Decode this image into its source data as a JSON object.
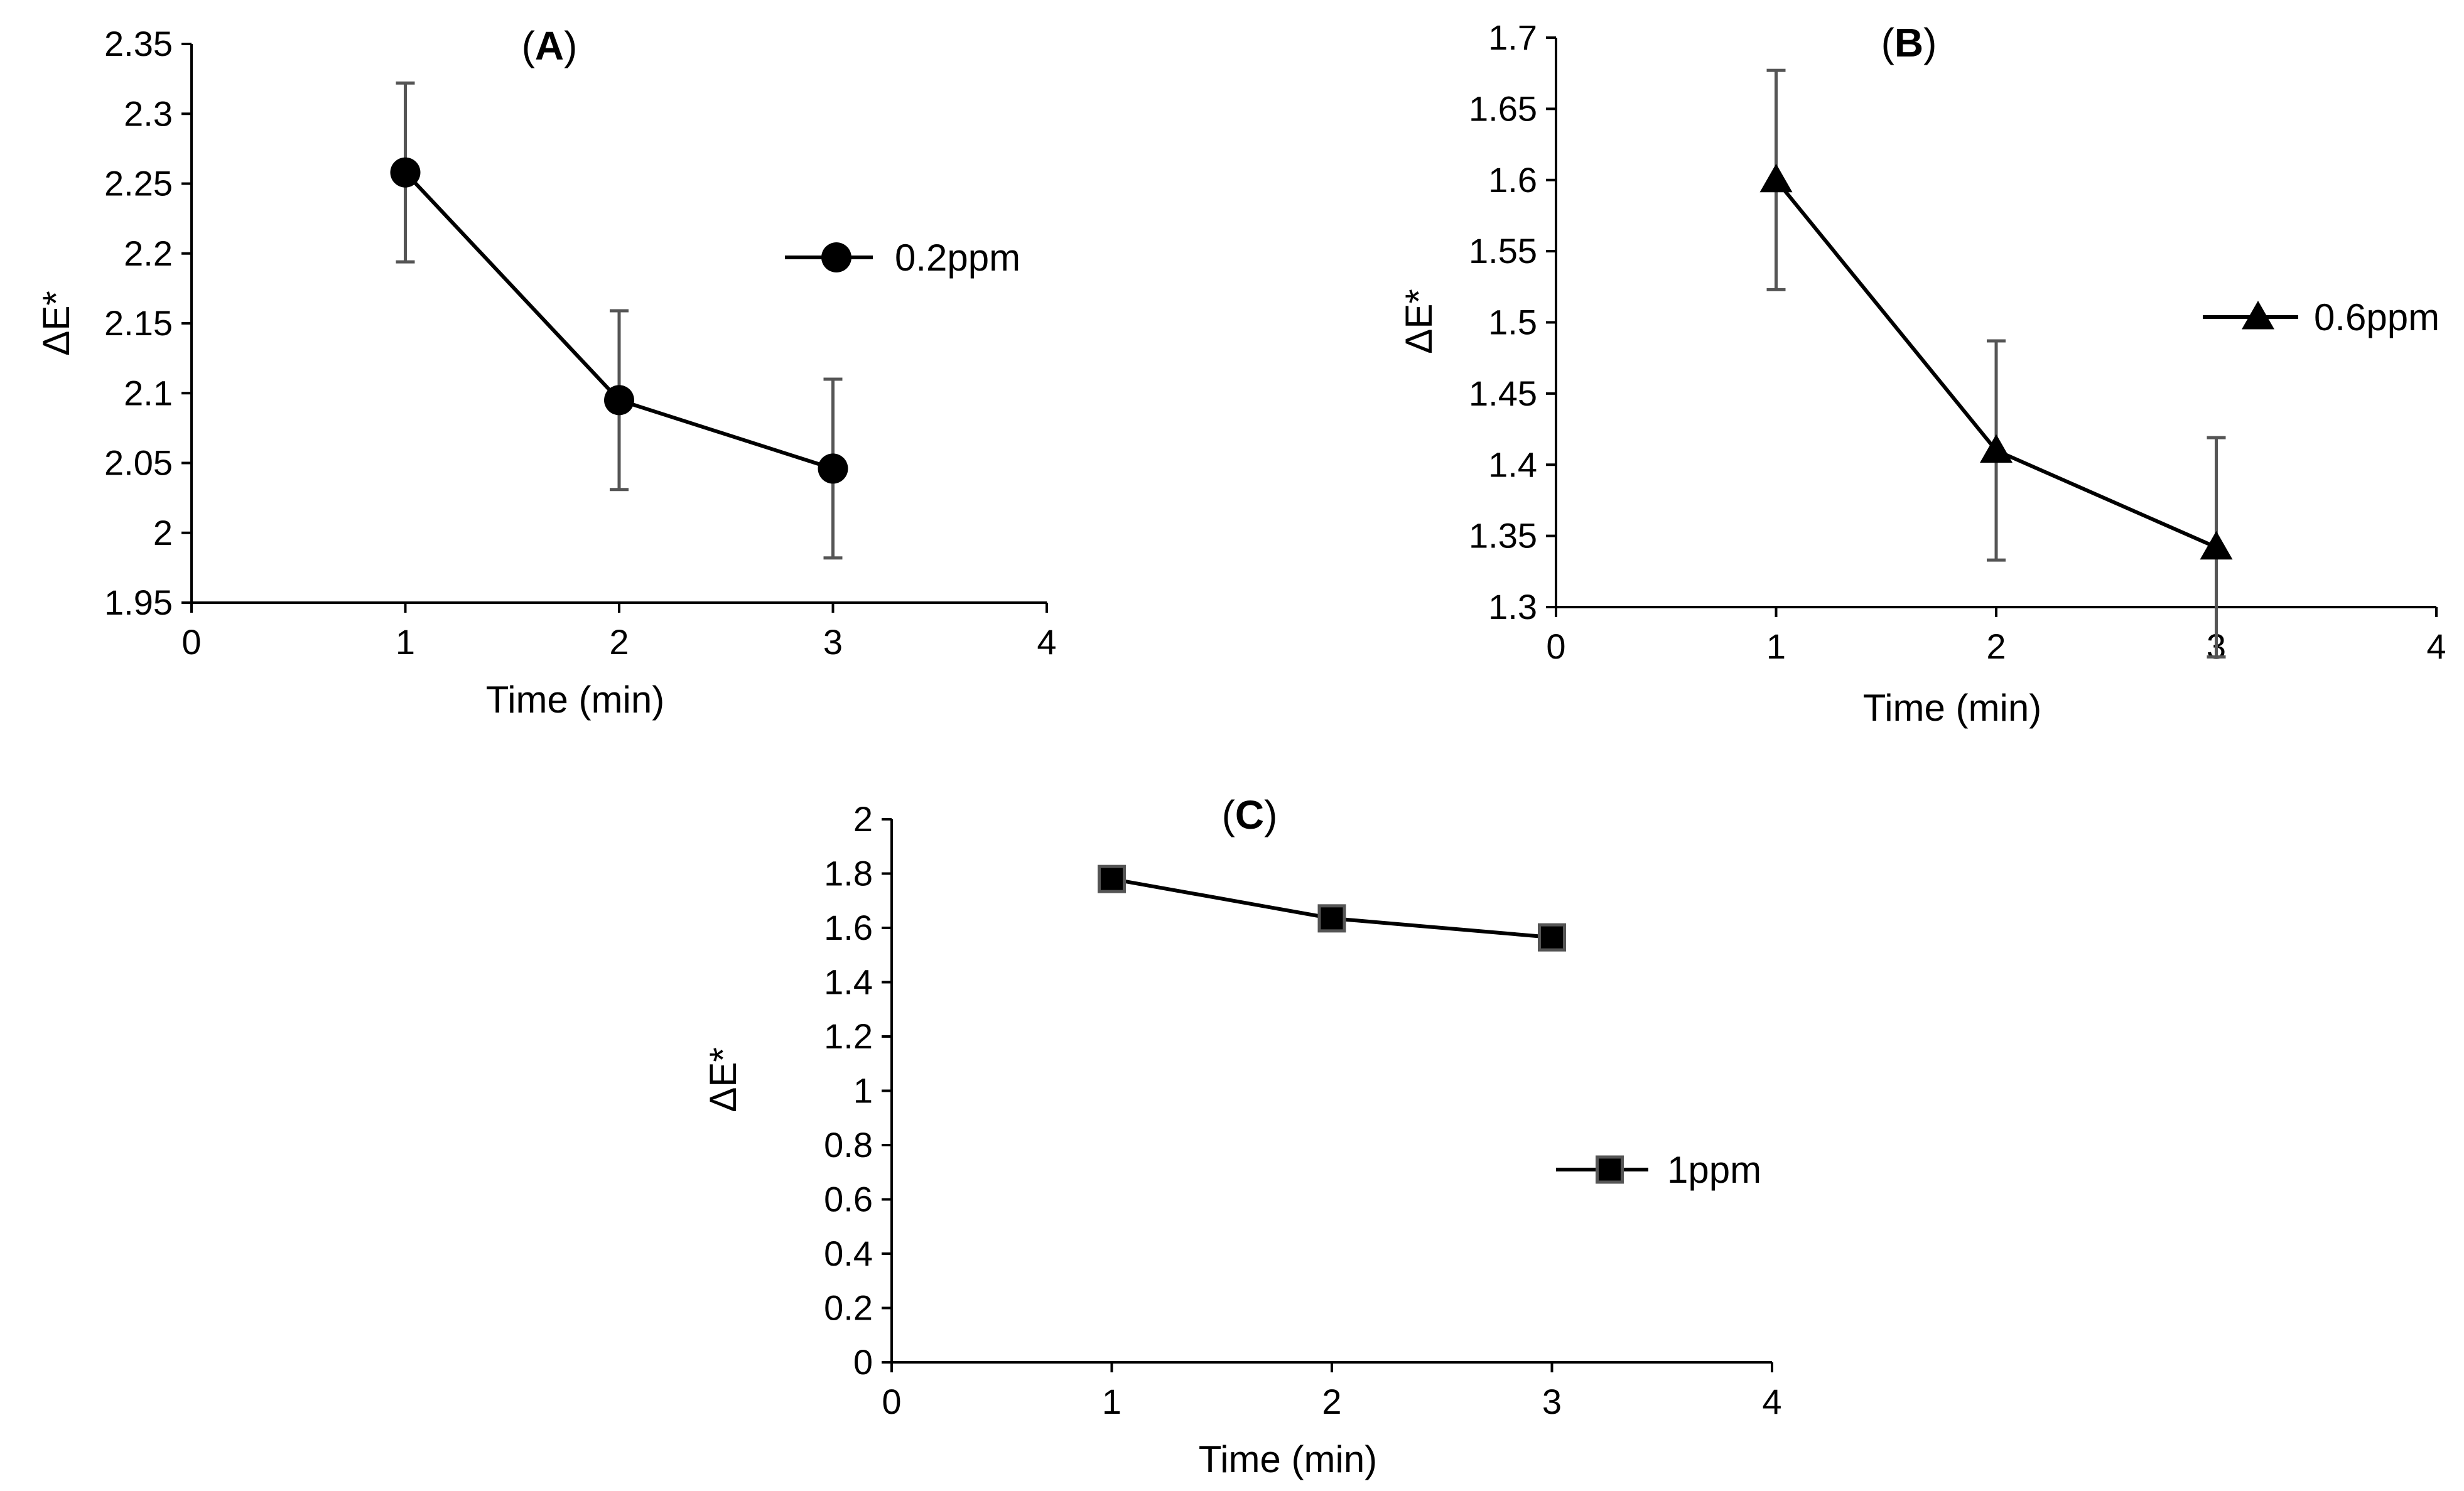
{
  "chart_data": [
    {
      "type": "line",
      "title_letter": "A",
      "xlabel": "Time (min)",
      "ylabel": "ΔE*",
      "xlim": [
        0,
        4
      ],
      "ylim": [
        1.95,
        2.35
      ],
      "x_ticks": [
        "0",
        "1",
        "2",
        "3",
        "4"
      ],
      "y_ticks": [
        "1.95",
        "2",
        "2.05",
        "2.1",
        "2.15",
        "2.2",
        "2.25",
        "2.3",
        "2.35"
      ],
      "legend_position": "right",
      "series": [
        {
          "name": "0.2ppm",
          "marker": "circle",
          "x": [
            1,
            2,
            3
          ],
          "y": [
            2.258,
            2.095,
            2.046
          ],
          "error": [
            0.064,
            0.064,
            0.064
          ]
        }
      ]
    },
    {
      "type": "line",
      "title_letter": "B",
      "xlabel": "Time (min)",
      "ylabel": "ΔE*",
      "xlim": [
        0,
        4
      ],
      "ylim": [
        1.3,
        1.7
      ],
      "x_ticks": [
        "0",
        "1",
        "2",
        "3",
        "4"
      ],
      "y_ticks": [
        "1.3",
        "1.35",
        "1.4",
        "1.45",
        "1.5",
        "1.55",
        "1.6",
        "1.65",
        "1.7"
      ],
      "legend_position": "right",
      "series": [
        {
          "name": "0.6ppm",
          "marker": "triangle",
          "x": [
            1,
            2,
            3
          ],
          "y": [
            1.6,
            1.41,
            1.342
          ],
          "error": [
            0.077,
            0.077,
            0.077
          ]
        }
      ]
    },
    {
      "type": "line",
      "title_letter": "C",
      "xlabel": "Time (min)",
      "ylabel": "ΔE*",
      "xlim": [
        0,
        4
      ],
      "ylim": [
        0,
        2
      ],
      "x_ticks": [
        "0",
        "1",
        "2",
        "3",
        "4"
      ],
      "y_ticks": [
        "0",
        "0.2",
        "0.4",
        "0.6",
        "0.8",
        "1",
        "1.2",
        "1.4",
        "1.6",
        "1.8",
        "2"
      ],
      "legend_position": "right",
      "series": [
        {
          "name": "1ppm",
          "marker": "square",
          "x": [
            1,
            2,
            3
          ],
          "y": [
            1.78,
            1.635,
            1.565
          ],
          "error": [
            0.03,
            0.03,
            0.03
          ]
        }
      ]
    }
  ]
}
